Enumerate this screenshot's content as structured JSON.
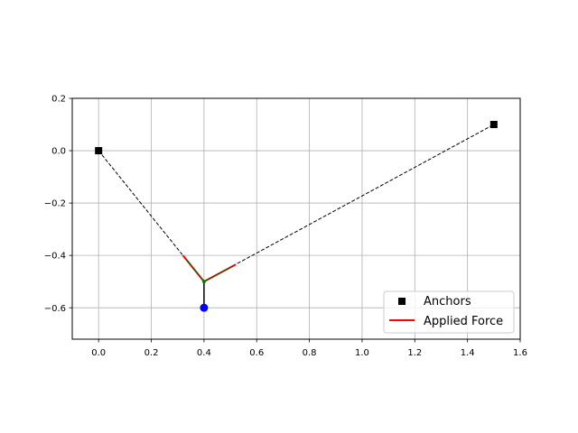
{
  "chart_data": {
    "type": "scatter",
    "title": "",
    "xlabel": "",
    "ylabel": "",
    "xlim": [
      -0.1,
      1.6
    ],
    "ylim": [
      -0.72,
      0.2
    ],
    "grid": true,
    "legend_position": "bottom-right",
    "x_ticks": [
      0.0,
      0.2,
      0.4,
      0.6,
      0.8,
      1.0,
      1.2,
      1.4,
      1.6
    ],
    "x_tick_labels": [
      "0.0",
      "0.2",
      "0.4",
      "0.6",
      "0.8",
      "1.0",
      "1.2",
      "1.4",
      "1.6"
    ],
    "y_ticks": [
      0.2,
      0.0,
      -0.2,
      -0.4,
      -0.6
    ],
    "y_tick_labels": [
      "0.2",
      "0.0",
      "−0.2",
      "−0.4",
      "−0.6"
    ],
    "anchors": {
      "name": "Anchors",
      "color": "#000000",
      "marker": "square",
      "points": [
        [
          0.0,
          0.0
        ],
        [
          1.5,
          0.1
        ]
      ]
    },
    "cables": {
      "color": "#000000",
      "style": "dashed",
      "segments": [
        [
          [
            0.0,
            0.0
          ],
          [
            0.4,
            -0.5
          ]
        ],
        [
          [
            0.4,
            -0.5
          ],
          [
            1.5,
            0.1
          ]
        ]
      ]
    },
    "node": {
      "point": [
        0.4,
        -0.5
      ],
      "color": "#008000"
    },
    "hanger": {
      "color": "#000000",
      "from": [
        0.4,
        -0.5
      ],
      "to": [
        0.4,
        -0.6
      ]
    },
    "load": {
      "point": [
        0.4,
        -0.6
      ],
      "color": "#0000ff"
    },
    "applied_force": {
      "name": "Applied Force",
      "color": "#ff0000",
      "segments": [
        [
          [
            0.4,
            -0.5
          ],
          [
            0.32,
            -0.4
          ]
        ],
        [
          [
            0.4,
            -0.5
          ],
          [
            0.52,
            -0.435
          ]
        ]
      ]
    },
    "force_overlay": {
      "color": "#006400",
      "segments": [
        [
          [
            0.4,
            -0.5
          ],
          [
            0.33,
            -0.412
          ]
        ],
        [
          [
            0.4,
            -0.5
          ],
          [
            0.508,
            -0.441
          ]
        ]
      ]
    }
  }
}
